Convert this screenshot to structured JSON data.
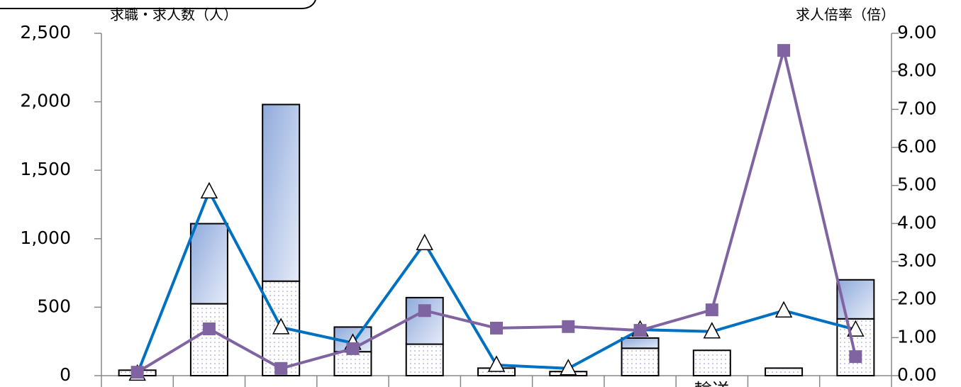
{
  "chart_data": {
    "type": "bar",
    "y_label": "求職・求人数（人）",
    "y2_label": "求人倍率（倍）",
    "categories": [
      null,
      null,
      null,
      null,
      null,
      null,
      null,
      null,
      "輸送",
      null,
      null
    ],
    "series": [
      {
        "name": null,
        "kind": "bar",
        "pattern": "dots",
        "color": "#ffffff",
        "values": [
          40,
          525,
          690,
          175,
          230,
          55,
          30,
          200,
          185,
          55,
          415
        ]
      },
      {
        "name": null,
        "kind": "bar",
        "pattern": "gradient",
        "color": "#8faadc",
        "values": [
          0,
          585,
          1290,
          180,
          340,
          0,
          0,
          75,
          0,
          0,
          285
        ]
      },
      {
        "name": null,
        "kind": "line",
        "marker": "triangle",
        "axis": "y2",
        "color": "#0070c0",
        "values": [
          0.05,
          4.84,
          1.27,
          0.86,
          3.48,
          0.28,
          0.19,
          1.21,
          1.16,
          1.71,
          1.21
        ]
      },
      {
        "name": null,
        "kind": "line",
        "marker": "square",
        "axis": "y2",
        "color": "#8064a2",
        "values": [
          0.09,
          1.23,
          0.19,
          0.71,
          1.71,
          1.25,
          1.29,
          1.19,
          1.73,
          8.55,
          0.5
        ]
      }
    ],
    "stacked": true,
    "ylim": [
      0,
      2500
    ],
    "yticks": [
      0,
      {
        "value": 500,
        "label": "500"
      },
      {
        "value": 1000,
        "label": "1,000"
      },
      {
        "value": 1500,
        "label": "1,500"
      },
      {
        "value": 2000,
        "label": "2,000"
      },
      {
        "value": 2500,
        "label": "2,500"
      }
    ],
    "y2lim": [
      0,
      9
    ],
    "y2ticks": [
      {
        "value": 0,
        "label": "0.00"
      },
      {
        "value": 1,
        "label": "1.00"
      },
      {
        "value": 2,
        "label": "2.00"
      },
      {
        "value": 3,
        "label": "3.00"
      },
      {
        "value": 4,
        "label": "4.00"
      },
      {
        "value": 5,
        "label": "5.00"
      },
      {
        "value": 6,
        "label": "6.00"
      },
      {
        "value": 7,
        "label": "7.00"
      },
      {
        "value": 8,
        "label": "8.00"
      },
      {
        "value": 9,
        "label": "9.00"
      }
    ],
    "grid": false
  }
}
